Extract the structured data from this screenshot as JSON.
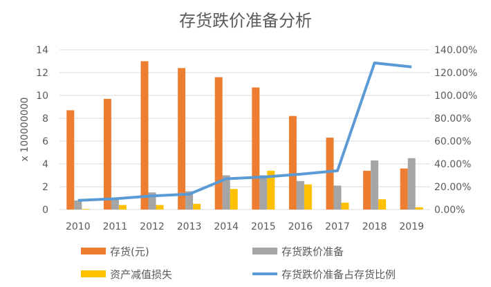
{
  "chart_data": {
    "type": "bar",
    "title": "存货跌价准备分析",
    "ylabel": "x 100000000",
    "ylim": [
      0,
      14
    ],
    "yticks": [
      "0",
      "2",
      "4",
      "6",
      "8",
      "10",
      "12",
      "14"
    ],
    "y2lim": [
      0,
      140
    ],
    "y2ticks": [
      "0.00%",
      "20.00%",
      "40.00%",
      "60.00%",
      "80.00%",
      "100.00%",
      "120.00%",
      "140.00%"
    ],
    "grid": true,
    "legend_position": "bottom",
    "categories": [
      "2010",
      "2011",
      "2012",
      "2013",
      "2014",
      "2015",
      "2016",
      "2017",
      "2018",
      "2019"
    ],
    "series": [
      {
        "name": "存货(元)",
        "type": "bar",
        "axis": "left",
        "color": "#ED7D31",
        "values": [
          8.7,
          9.7,
          13.0,
          12.4,
          11.6,
          10.7,
          8.2,
          6.3,
          3.4,
          3.6
        ]
      },
      {
        "name": "存货跌价准备",
        "type": "bar",
        "axis": "left",
        "color": "#A5A5A5",
        "values": [
          0.8,
          0.9,
          1.5,
          1.6,
          3.0,
          3.0,
          2.5,
          2.1,
          4.3,
          4.5
        ]
      },
      {
        "name": "资产减值损失",
        "type": "bar",
        "axis": "left",
        "color": "#FFC000",
        "values": [
          0.05,
          0.4,
          0.4,
          0.5,
          1.8,
          3.4,
          2.2,
          0.6,
          0.9,
          0.2
        ]
      },
      {
        "name": "存货跌价准备占存货比例",
        "type": "line",
        "axis": "right",
        "color": "#5B9BD5",
        "values": [
          8,
          9.5,
          12,
          13.5,
          27,
          28.5,
          31,
          34,
          128.5,
          125
        ]
      }
    ]
  }
}
